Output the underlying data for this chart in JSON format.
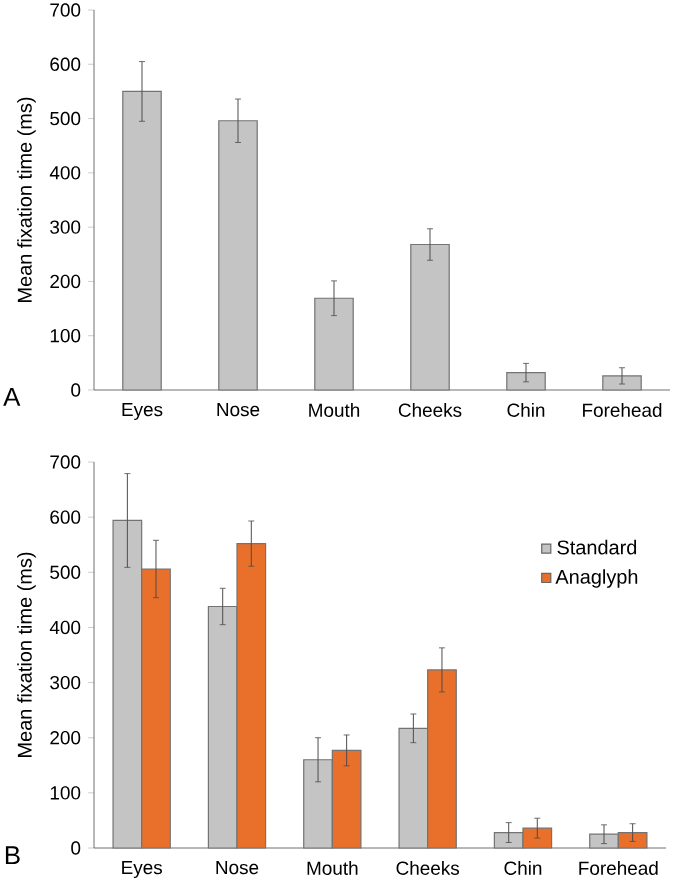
{
  "chart_data": [
    {
      "type": "bar",
      "categories": [
        "Eyes",
        "Nose",
        "Mouth",
        "Cheeks",
        "Chin",
        "Forehead"
      ],
      "values": [
        550,
        496,
        169,
        268,
        32,
        26
      ],
      "errors": [
        55,
        40,
        32,
        29,
        17,
        15
      ],
      "color": "#c4c4c4",
      "ylabel": "Mean fixation time (ms)",
      "ylim": [
        0,
        700
      ],
      "yticks": [
        0,
        100,
        200,
        300,
        400,
        500,
        600,
        700
      ],
      "annotations": [
        "A"
      ]
    },
    {
      "type": "bar",
      "categories": [
        "Eyes",
        "Nose",
        "Mouth",
        "Cheeks",
        "Chin",
        "Forehead"
      ],
      "series": [
        {
          "name": "Standard",
          "color": "#c4c4c4",
          "values": [
            594,
            438,
            160,
            217,
            28,
            25
          ],
          "errors": [
            85,
            33,
            40,
            26,
            18,
            17
          ]
        },
        {
          "name": "Anaglyph",
          "color": "#e8702a",
          "values": [
            506,
            552,
            177,
            323,
            36,
            28
          ],
          "errors": [
            52,
            41,
            28,
            40,
            18,
            16
          ]
        }
      ],
      "ylabel": "Mean fixation time (ms)",
      "ylim": [
        0,
        700
      ],
      "yticks": [
        0,
        100,
        200,
        300,
        400,
        500,
        600,
        700
      ],
      "legend": "right",
      "annotations": [
        "B"
      ]
    }
  ]
}
